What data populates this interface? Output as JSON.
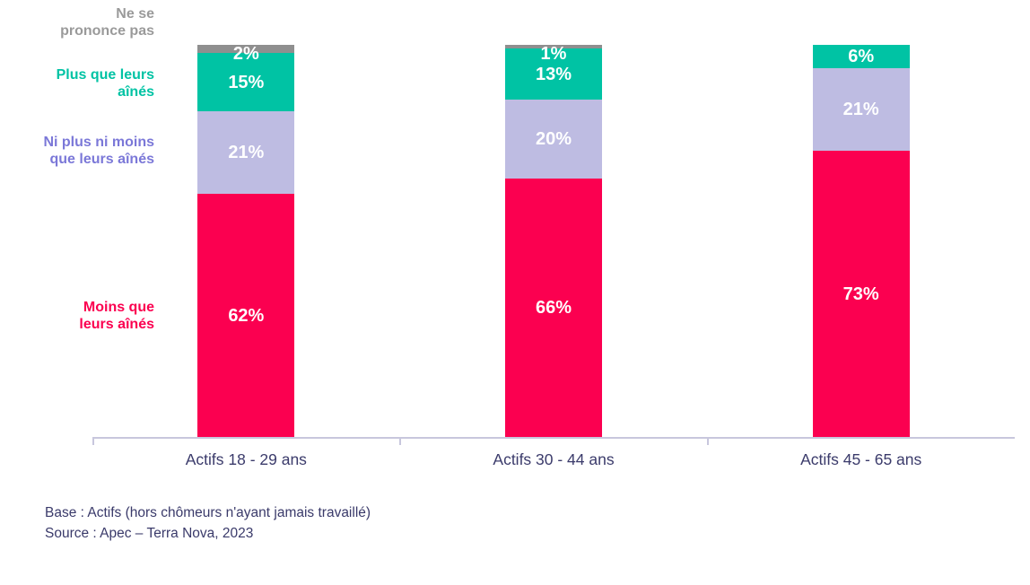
{
  "chart_data": {
    "type": "bar",
    "subtype": "stacked-vertical",
    "title": "",
    "categories": [
      "Actifs 18 - 29 ans",
      "Actifs 30 - 44 ans",
      "Actifs 45 - 65 ans"
    ],
    "series": [
      {
        "name": "Moins que leurs aînés",
        "color": "#FB0050",
        "values": [
          62,
          66,
          73
        ]
      },
      {
        "name": "Ni plus ni moins que leurs aînés",
        "color": "#BEBCE2",
        "values": [
          21,
          20,
          21
        ]
      },
      {
        "name": "Plus que leurs aînés",
        "color": "#00C3A4",
        "values": [
          15,
          13,
          6
        ]
      },
      {
        "name": "Ne se prononce pas",
        "color": "#8F8F8F",
        "values": [
          2,
          1,
          0
        ]
      }
    ],
    "value_suffix": "%",
    "ylim": [
      0,
      100
    ],
    "grid": false,
    "legend_position": "left",
    "value_labels_color": "#ffffff"
  },
  "legend": {
    "nsp": {
      "label": "Ne se\nprononce pas",
      "color": "#9A9A9A"
    },
    "plus": {
      "label": "Plus que leurs\naînés",
      "color": "#00C3A4"
    },
    "ni": {
      "label": "Ni plus ni moins\nque leurs aînés",
      "color": "#7B78D8"
    },
    "moins": {
      "label": "Moins que\nleurs aînés",
      "color": "#FB0050"
    }
  },
  "footer": {
    "base": "Base : Actifs (hors chômeurs n'ayant jamais travaillé)",
    "source": "Source : Apec – Terra Nova, 2023"
  }
}
